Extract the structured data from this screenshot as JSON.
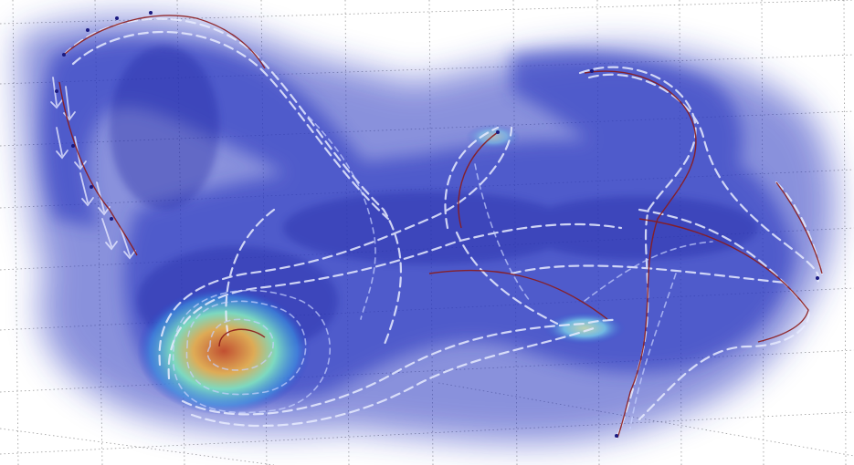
{
  "figure": {
    "kind": "3D flow visualization",
    "colormap": [
      "#1a2aa8",
      "#3b5ad6",
      "#4fa3e8",
      "#7fe0d0",
      "#e8d060",
      "#e07030",
      "#a83020"
    ],
    "background": "#ffffff",
    "grid_color": "#808080",
    "trajectory_color": "#8b1a1a",
    "arrow_color": "#e8ecff",
    "volume_color": "#2a38c0"
  },
  "annotations": []
}
